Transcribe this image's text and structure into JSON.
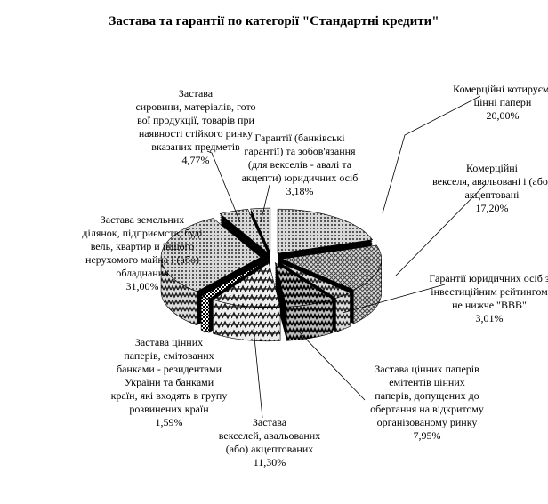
{
  "chart_data": {
    "type": "pie",
    "style": "3d-exploded-patterned",
    "title": "Застава та гарантії по категорії \"Стандартні кредити\"",
    "slices": [
      {
        "label": "Комерційні котируємі\nцінні папери",
        "value": 20.0,
        "value_label": "20,00%",
        "pattern": "dots"
      },
      {
        "label": "Комерційні\nвекселя, авальовані і (або)\nакцептовані",
        "value": 17.2,
        "value_label": "17,20%",
        "pattern": "crosshatch"
      },
      {
        "label": "Гарантії юридичних осіб з\nінвестиційним рейтингом\nне нижче \"ВВВ\"",
        "value": 3.01,
        "value_label": "3,01%",
        "pattern": "zigzag"
      },
      {
        "label": "Застава цінних паперів\nемітентів цінних\nпаперів, допущених до\nобертання на відкритому\nорганізованому ринку",
        "value": 7.95,
        "value_label": "7,95%",
        "pattern": "zigzag-dark"
      },
      {
        "label": "Застава\nвекселей, авальованих\n(або) акцептованих",
        "value": 11.3,
        "value_label": "11,30%",
        "pattern": "weave"
      },
      {
        "label": "Застава цінних\nпаперів, емітованих\nбанками - резидентами\nУкраїни та банками\nкраїн, які входять в групу\nрозвинених країн",
        "value": 1.59,
        "value_label": "1,59%",
        "pattern": "checker"
      },
      {
        "label": "Застава земельних\nділянок, підприємств, буді\nвель, квартир и іншого\nнерухомого майна і (або)\nобладнання",
        "value": 31.0,
        "value_label": "31,00%",
        "pattern": "dots"
      },
      {
        "label": "Застава\nсировини, матеріалів, гото\nвої продукції, товарів при\nнаявності стійкого ринку\nвказаних предметів",
        "value": 4.77,
        "value_label": "4,77%",
        "pattern": "dots"
      },
      {
        "label": "Гарантії (банківські\nгарантії) та зобов'язання\n(для векселів - авалі та\nакцепти) юридичних осіб",
        "value": 3.18,
        "value_label": "3,18%",
        "pattern": "dots"
      }
    ],
    "legend": "none",
    "colors": {
      "face": "#b8b8b8",
      "edge": "#000000",
      "background": "#ffffff"
    }
  }
}
